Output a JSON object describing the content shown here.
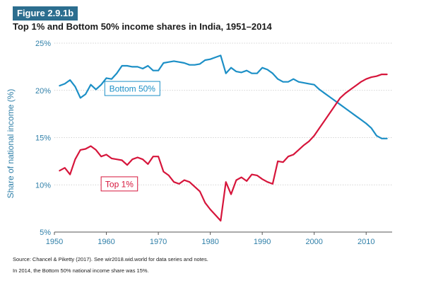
{
  "figure": {
    "badge": "Figure 2.9.1b",
    "title": "Top 1% and Bottom 50% income shares in India, 1951–2014",
    "source": "Source: Chancel & Piketty (2017). See wir2018.wid.world for data series and notes.",
    "note": "In 2014, the Bottom 50% national income share was 15%."
  },
  "chart_data": {
    "type": "line",
    "ylabel": "Share of national income (%)",
    "xlabel": "",
    "xlim": [
      1950,
      2015
    ],
    "ylim": [
      5,
      25
    ],
    "x_ticks": [
      1950,
      1960,
      1970,
      1980,
      1990,
      2000,
      2010
    ],
    "y_ticks": [
      5,
      10,
      15,
      20,
      25
    ],
    "y_tick_labels": [
      "5%",
      "10%",
      "15%",
      "20%",
      "25%"
    ],
    "grid": "horizontal dotted",
    "legend": "inline labels",
    "series": [
      {
        "name": "Bottom 50%",
        "color": "#1c8fc6",
        "x": [
          1951,
          1952,
          1953,
          1954,
          1955,
          1956,
          1957,
          1958,
          1959,
          1960,
          1961,
          1962,
          1963,
          1964,
          1965,
          1966,
          1967,
          1968,
          1969,
          1970,
          1971,
          1972,
          1973,
          1974,
          1975,
          1976,
          1977,
          1978,
          1979,
          1980,
          1981,
          1982,
          1983,
          1984,
          1985,
          1986,
          1987,
          1988,
          1989,
          1990,
          1991,
          1992,
          1993,
          1994,
          1995,
          1996,
          1997,
          1998,
          1999,
          2000,
          2001,
          2002,
          2003,
          2004,
          2005,
          2006,
          2007,
          2008,
          2009,
          2010,
          2011,
          2012,
          2013,
          2014
        ],
        "values": [
          20.5,
          20.7,
          21.1,
          20.4,
          19.2,
          19.6,
          20.6,
          20.1,
          20.6,
          21.3,
          21.2,
          21.8,
          22.6,
          22.6,
          22.5,
          22.5,
          22.3,
          22.6,
          22.1,
          22.1,
          22.9,
          23.0,
          23.1,
          23.0,
          22.9,
          22.7,
          22.7,
          22.8,
          23.2,
          23.3,
          23.5,
          23.7,
          21.8,
          22.4,
          22.0,
          21.9,
          22.1,
          21.8,
          21.8,
          22.4,
          22.2,
          21.8,
          21.2,
          20.9,
          20.9,
          21.2,
          20.9,
          20.8,
          20.7,
          20.6,
          20.1,
          19.7,
          19.3,
          18.9,
          18.5,
          18.1,
          17.7,
          17.3,
          16.9,
          16.5,
          16.0,
          15.2,
          14.9,
          14.9
        ]
      },
      {
        "name": "Top 1%",
        "color": "#d6153b",
        "x": [
          1951,
          1952,
          1953,
          1954,
          1955,
          1956,
          1957,
          1958,
          1959,
          1960,
          1961,
          1962,
          1963,
          1964,
          1965,
          1966,
          1967,
          1968,
          1969,
          1970,
          1971,
          1972,
          1973,
          1974,
          1975,
          1976,
          1977,
          1978,
          1979,
          1980,
          1981,
          1982,
          1983,
          1984,
          1985,
          1986,
          1987,
          1988,
          1989,
          1990,
          1991,
          1992,
          1993,
          1994,
          1995,
          1996,
          1997,
          1998,
          1999,
          2000,
          2001,
          2002,
          2003,
          2004,
          2005,
          2006,
          2007,
          2008,
          2009,
          2010,
          2011,
          2012,
          2013,
          2014
        ],
        "values": [
          11.5,
          11.8,
          11.1,
          12.7,
          13.7,
          13.8,
          14.1,
          13.7,
          13.0,
          13.2,
          12.8,
          12.7,
          12.6,
          12.1,
          12.7,
          12.9,
          12.7,
          12.2,
          13.0,
          13.0,
          11.4,
          11.0,
          10.3,
          10.1,
          10.5,
          10.3,
          9.8,
          9.3,
          8.1,
          7.4,
          6.8,
          6.2,
          10.3,
          9.0,
          10.5,
          10.8,
          10.4,
          11.1,
          11.0,
          10.6,
          10.3,
          10.1,
          12.5,
          12.4,
          13.0,
          13.2,
          13.7,
          14.2,
          14.6,
          15.2,
          16.0,
          16.8,
          17.6,
          18.4,
          19.2,
          19.7,
          20.1,
          20.5,
          20.9,
          21.2,
          21.4,
          21.5,
          21.7,
          21.7
        ]
      }
    ],
    "annotations": [
      {
        "text": "Bottom 50%",
        "x": 1965.0,
        "y": 20.2,
        "series": 0
      },
      {
        "text": "Top 1%",
        "x": 1962.5,
        "y": 10.1,
        "series": 1
      }
    ]
  }
}
